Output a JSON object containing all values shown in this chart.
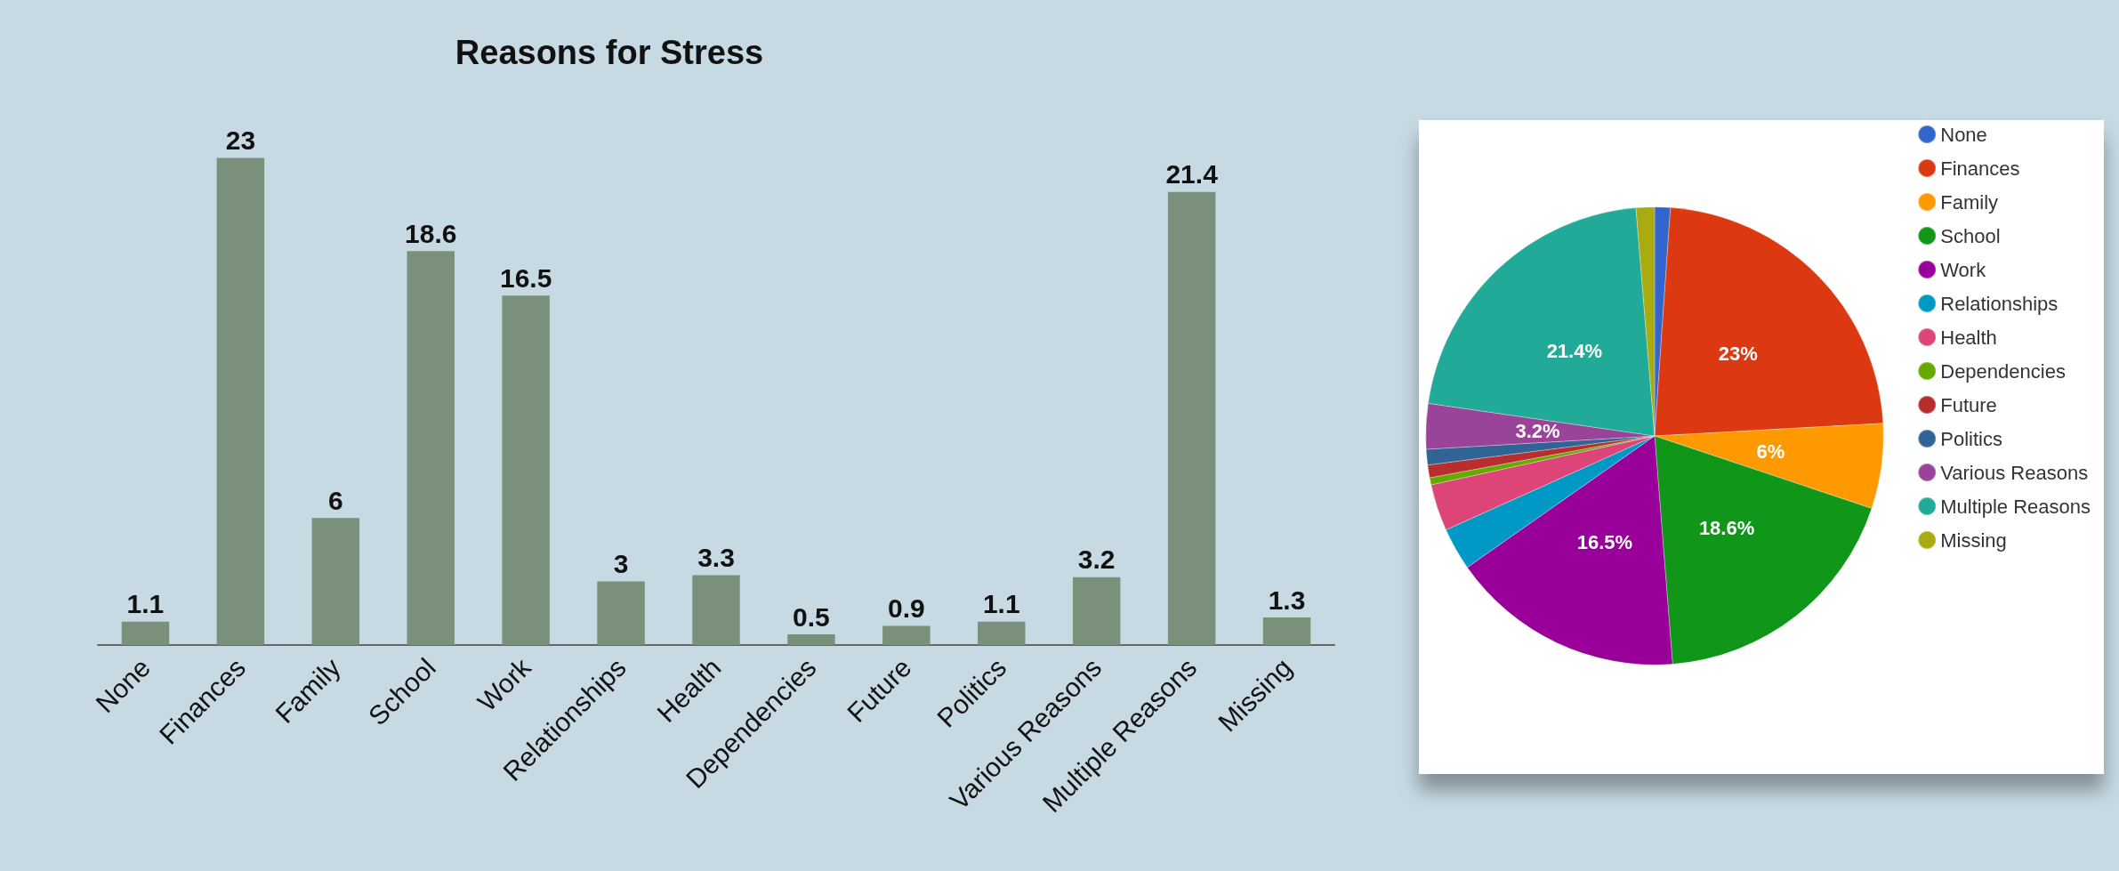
{
  "chart_data": [
    {
      "type": "bar",
      "title": "Reasons for Stress",
      "categories": [
        "None",
        "Finances",
        "Family",
        "School",
        "Work",
        "Relationships",
        "Health",
        "Dependencies",
        "Future",
        "Politics",
        "Various Reasons",
        "Multiple Reasons",
        "Missing"
      ],
      "values": [
        1.1,
        23,
        6,
        18.6,
        16.5,
        3,
        3.3,
        0.5,
        0.9,
        1.1,
        3.2,
        21.4,
        1.3
      ],
      "color": "#7b907a",
      "data_labels": true
    },
    {
      "type": "pie",
      "categories": [
        "None",
        "Finances",
        "Family",
        "School",
        "Work",
        "Relationships",
        "Health",
        "Dependencies",
        "Future",
        "Politics",
        "Various Reasons",
        "Multiple Reasons",
        "Missing"
      ],
      "values": [
        1.1,
        23,
        6,
        18.6,
        16.5,
        3,
        3.3,
        0.5,
        0.9,
        1.1,
        3.2,
        21.4,
        1.3
      ],
      "colors": [
        "#3366cc",
        "#dc3912",
        "#ff9900",
        "#109618",
        "#990099",
        "#0099c6",
        "#dd4477",
        "#66aa00",
        "#b82e2e",
        "#316395",
        "#994499",
        "#22aa99",
        "#aaaa11"
      ],
      "value_labels": [
        null,
        "23%",
        "6%",
        "18.6%",
        "16.5%",
        null,
        null,
        null,
        null,
        null,
        "3.2%",
        "21.4%",
        null
      ],
      "legend": "right"
    }
  ]
}
